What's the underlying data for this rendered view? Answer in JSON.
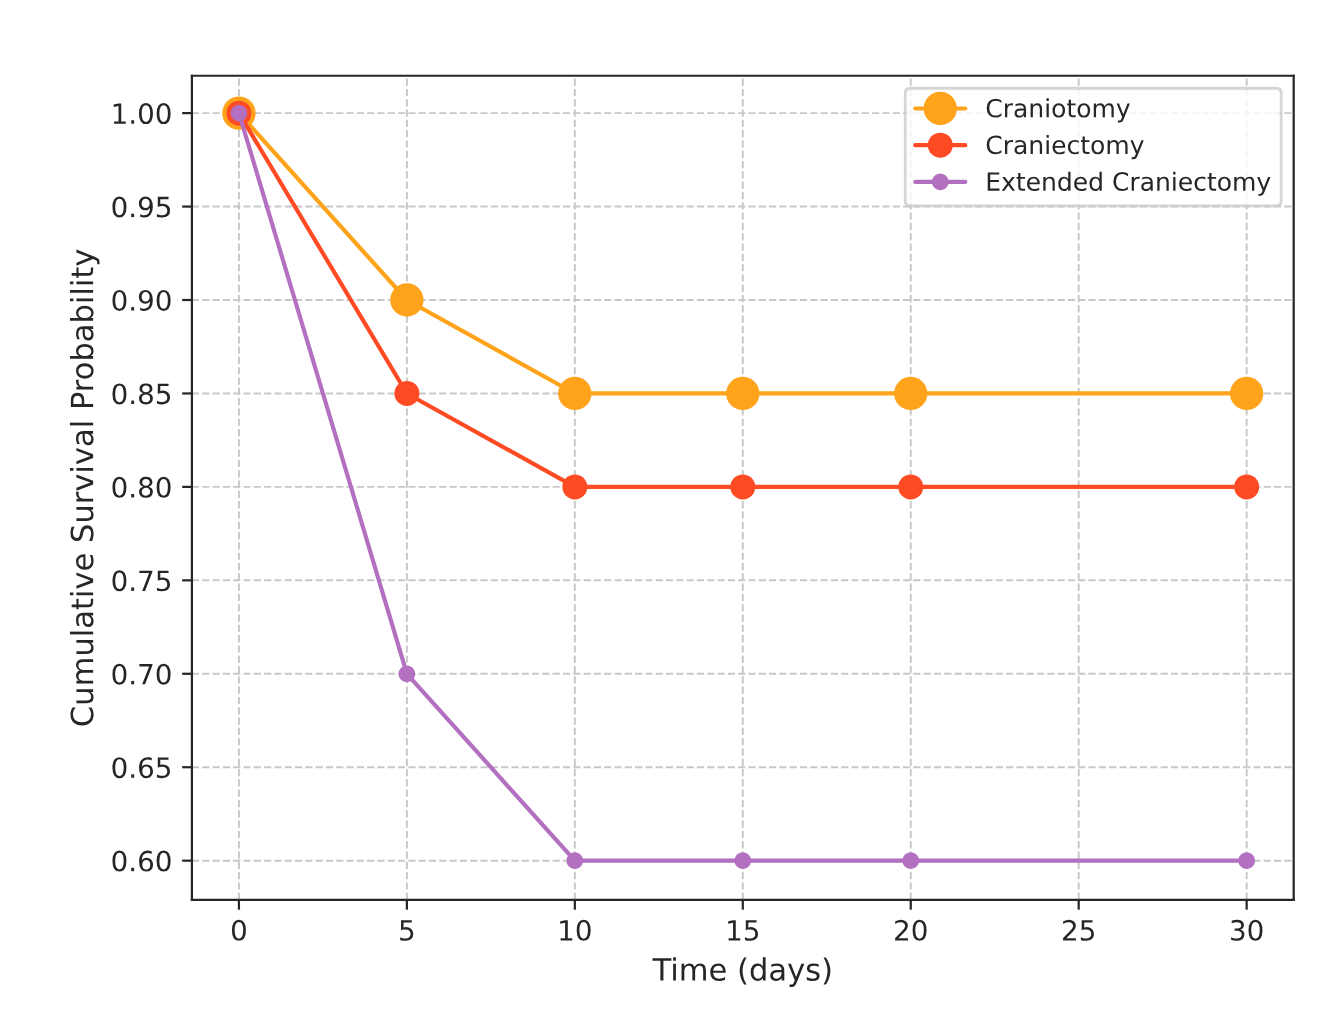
{
  "chart_data": {
    "type": "line",
    "xlabel": "Time (days)",
    "ylabel": "Cumulative Survival Probability",
    "x": [
      0,
      5,
      10,
      15,
      20,
      30
    ],
    "series": [
      {
        "name": "Craniotomy",
        "color": "#ffa31a",
        "values": [
          1.0,
          0.9,
          0.85,
          0.85,
          0.85,
          0.85
        ]
      },
      {
        "name": "Craniectomy",
        "color": "#ff4b24",
        "values": [
          1.0,
          0.85,
          0.8,
          0.8,
          0.8,
          0.8
        ]
      },
      {
        "name": "Extended Craniectomy",
        "color": "#b36fc0",
        "values": [
          1.0,
          0.7,
          0.6,
          0.6,
          0.6,
          0.6
        ]
      }
    ],
    "xlim": [
      -1.4,
      31.4
    ],
    "ylim": [
      0.579,
      1.02
    ],
    "xticks": [
      0,
      5,
      10,
      15,
      20,
      25,
      30
    ],
    "yticks": [
      {
        "value": 0.6,
        "label": "0.60"
      },
      {
        "value": 0.65,
        "label": "0.65"
      },
      {
        "value": 0.7,
        "label": "0.70"
      },
      {
        "value": 0.75,
        "label": "0.75"
      },
      {
        "value": 0.8,
        "label": "0.80"
      },
      {
        "value": 0.85,
        "label": "0.85"
      },
      {
        "value": 0.9,
        "label": "0.90"
      },
      {
        "value": 0.95,
        "label": "0.95"
      },
      {
        "value": 1.0,
        "label": "1.00"
      }
    ],
    "grid": true,
    "legend": "top right",
    "marker": "circle",
    "line_style": "solid"
  }
}
